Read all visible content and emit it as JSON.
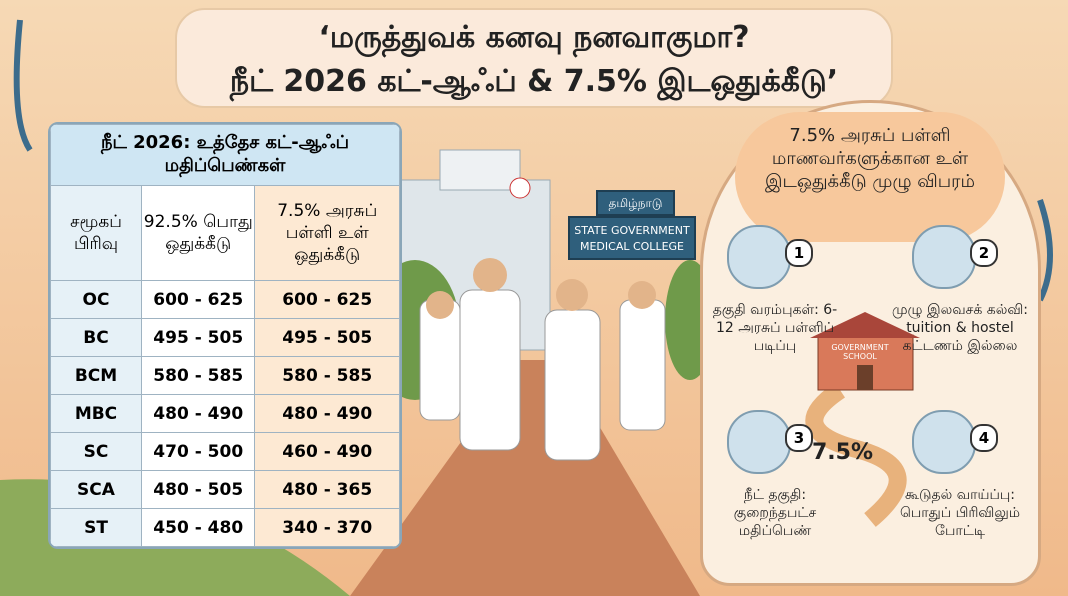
{
  "header": {
    "title_line1": "‘மருத்துவக் கனவு நனவாகுமா?",
    "title_line2": "நீட் 2026 கட்-ஆஃப் & 7.5% இடஒதுக்கீடு’"
  },
  "table": {
    "title": "நீட் 2026: உத்தேச கட்-ஆஃப் மதிப்பெண்கள்",
    "columns": [
      "சமூகப் பிரிவு",
      "92.5% பொது ஒதுக்கீடு",
      "7.5% அரசுப் பள்ளி உள் ஒதுக்கீடு"
    ],
    "rows": [
      [
        "OC",
        "600 - 625",
        "600 - 625"
      ],
      [
        "BC",
        "495 - 505",
        "495 - 505"
      ],
      [
        "BCM",
        "580 - 585",
        "580 - 585"
      ],
      [
        "MBC",
        "480 - 490",
        "480 - 490"
      ],
      [
        "SC",
        "470 - 500",
        "460 - 490"
      ],
      [
        "SCA",
        "480 - 505",
        "480 - 365"
      ],
      [
        "ST",
        "450 - 480",
        "340 - 370"
      ]
    ]
  },
  "signs": {
    "state": "தமிழ்நாடு",
    "college": "STATE GOVERNMENT MEDICAL COLLEGE",
    "school": "GOVERNMENT SCHOOL",
    "path_label": "7.5%"
  },
  "panel": {
    "title": "7.5% அரசுப் பள்ளி மாணவர்களுக்கான உள் இடஒதுக்கீடு முழு விபரம்",
    "items": [
      {
        "number": "1",
        "text": "தகுதி வரம்புகள்: 6-12 அரசுப் பள்ளிப் படிப்பு"
      },
      {
        "number": "2",
        "text": "முழு இலவசக் கல்வி: tuition & hostel கட்டணம் இல்லை"
      },
      {
        "number": "3",
        "text": "நீட் தகுதி: குறைந்தபட்ச மதிப்பெண்"
      },
      {
        "number": "4",
        "text": "கூடுதல் வாய்ப்பு: பொதுப் பிரிவிலும் போட்டி"
      }
    ]
  }
}
